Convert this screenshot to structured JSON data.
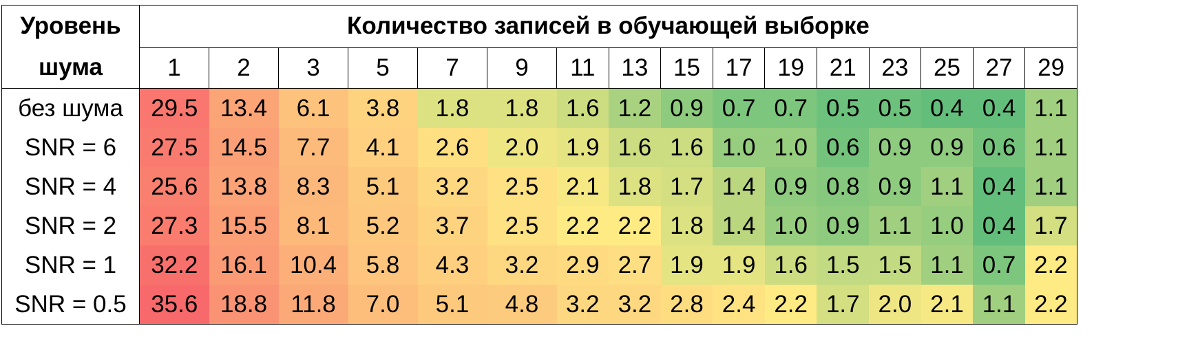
{
  "corner_label": "Уровень шума",
  "chart_data": {
    "type": "heatmap",
    "title": "Количество записей в обучающей выборке",
    "columns": [
      "1",
      "2",
      "3",
      "5",
      "7",
      "9",
      "11",
      "13",
      "15",
      "17",
      "19",
      "21",
      "23",
      "25",
      "27",
      "29"
    ],
    "rows": [
      {
        "label": "без шума",
        "values": [
          "29.5",
          "13.4",
          "6.1",
          "3.8",
          "1.8",
          "1.8",
          "1.6",
          "1.2",
          "0.9",
          "0.7",
          "0.7",
          "0.5",
          "0.5",
          "0.4",
          "0.4",
          "1.1"
        ]
      },
      {
        "label": "SNR = 6",
        "values": [
          "27.5",
          "14.5",
          "7.7",
          "4.1",
          "2.6",
          "2.0",
          "1.9",
          "1.6",
          "1.6",
          "1.0",
          "1.0",
          "0.6",
          "0.9",
          "0.9",
          "0.6",
          "1.1"
        ]
      },
      {
        "label": "SNR = 4",
        "values": [
          "25.6",
          "13.8",
          "8.3",
          "5.1",
          "3.2",
          "2.5",
          "2.1",
          "1.8",
          "1.7",
          "1.4",
          "0.9",
          "0.8",
          "0.9",
          "1.1",
          "0.4",
          "1.1"
        ]
      },
      {
        "label": "SNR = 2",
        "values": [
          "27.3",
          "15.5",
          "8.1",
          "5.2",
          "3.7",
          "2.5",
          "2.2",
          "2.2",
          "1.8",
          "1.4",
          "1.0",
          "0.9",
          "1.1",
          "1.0",
          "0.4",
          "1.7"
        ]
      },
      {
        "label": "SNR = 1",
        "values": [
          "32.2",
          "16.1",
          "10.4",
          "5.8",
          "4.3",
          "3.2",
          "2.9",
          "2.7",
          "1.9",
          "1.9",
          "1.6",
          "1.5",
          "1.5",
          "1.1",
          "0.7",
          "2.2"
        ]
      },
      {
        "label": "SNR = 0.5",
        "values": [
          "35.6",
          "18.8",
          "11.8",
          "7.0",
          "5.1",
          "4.8",
          "3.2",
          "3.2",
          "2.8",
          "2.4",
          "2.2",
          "1.7",
          "2.0",
          "2.1",
          "1.1",
          "2.2"
        ]
      }
    ],
    "color_scale": {
      "type": "diverging",
      "low_color": "#63be7b",
      "mid_color": "#ffeb84",
      "high_color": "#f8696b",
      "low_value": 0.4,
      "mid_value": 2.2,
      "high_value": 35.6
    }
  }
}
